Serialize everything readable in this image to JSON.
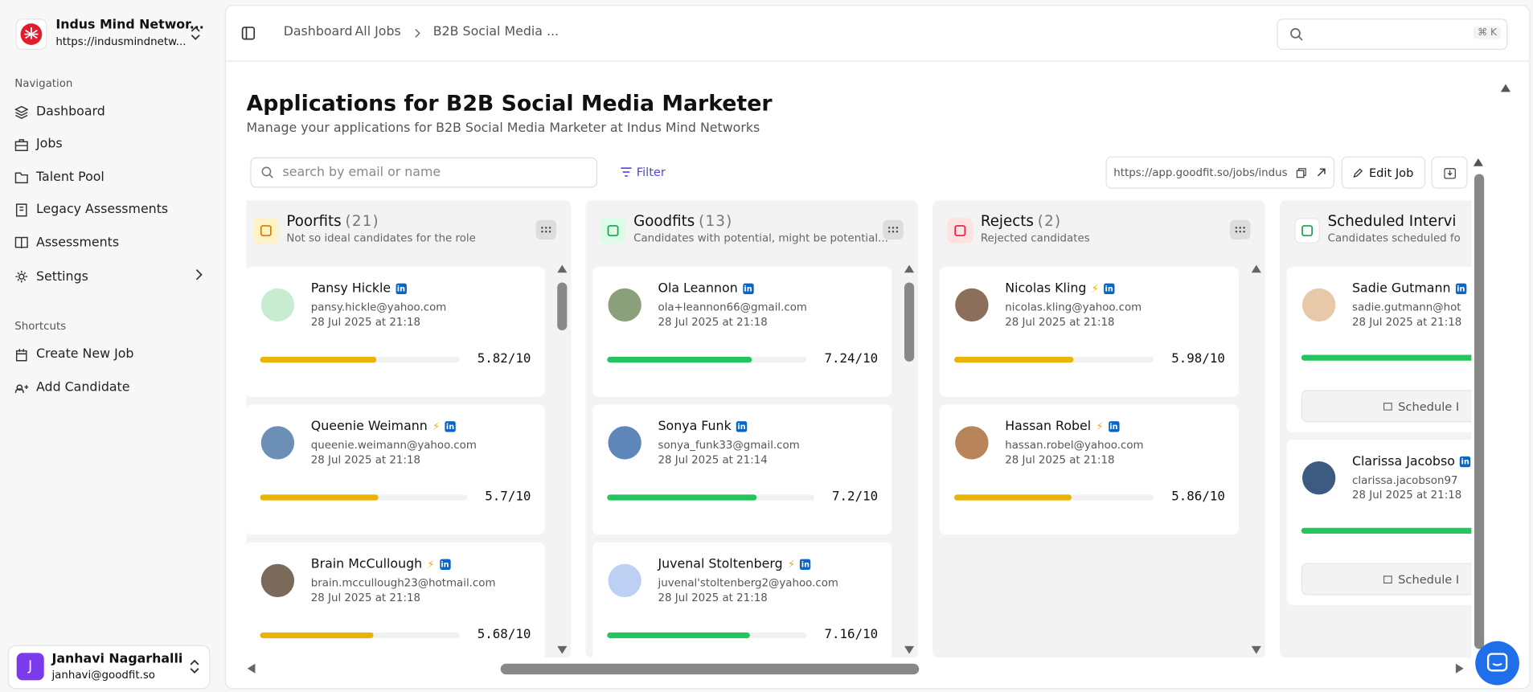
{
  "sidebar": {
    "org_name": "Indus Mind Networ...",
    "org_url": "https://indusmindnetw...",
    "nav_heading": "Navigation",
    "nav": [
      "Dashboard",
      "Jobs",
      "Talent Pool",
      "Legacy Assessments",
      "Assessments",
      "Settings"
    ],
    "shortcuts_heading": "Shortcuts",
    "shortcuts": [
      "Create New Job",
      "Add Candidate"
    ],
    "user": {
      "initial": "J",
      "name": "Janhavi Nagarhalli",
      "email": "janhavi@goodfit.so"
    }
  },
  "header": {
    "breadcrumb": [
      "Dashboard",
      "All Jobs",
      "B2B Social Media ..."
    ],
    "search_shortcut": "⌘ K"
  },
  "page": {
    "title": "Applications for B2B Social Media Marketer",
    "subtitle": "Manage your applications for B2B Social Media Marketer at Indus Mind Networks",
    "search_placeholder": "search by email or name",
    "filter": "Filter",
    "job_url": "https://app.goodfit.so/jobs/indus...",
    "edit_job": "Edit Job"
  },
  "columns": [
    {
      "title": "Poorfits",
      "count": "(21)",
      "subtitle": "Not so ideal candidates for the role",
      "color": "#eab308",
      "cards": [
        {
          "name": "Pansy Hickle",
          "email": "pansy.hickle@yahoo.com",
          "date": "28 Jul 2025 at 21:18",
          "lightning": false,
          "score": {
            "value": 5.82,
            "max": 10,
            "label": "5.82/10"
          }
        },
        {
          "name": "Queenie Weimann",
          "email": "queenie.weimann@yahoo.com",
          "date": "28 Jul 2025 at 21:18",
          "lightning": true,
          "score": {
            "value": 5.7,
            "max": 10,
            "label": "5.7/10"
          }
        },
        {
          "name": "Brain McCullough",
          "email": "brain.mccullough23@hotmail.com",
          "date": "28 Jul 2025 at 21:18",
          "lightning": true,
          "score": {
            "value": 5.68,
            "max": 10,
            "label": "5.68/10"
          }
        }
      ]
    },
    {
      "title": "Goodfits",
      "count": "(13)",
      "subtitle": "Candidates with potential, might be potential...",
      "color": "#22c55e",
      "cards": [
        {
          "name": "Ola Leannon",
          "email": "ola+leannon66@gmail.com",
          "date": "28 Jul 2025 at 21:18",
          "lightning": false,
          "score": {
            "value": 7.24,
            "max": 10,
            "label": "7.24/10"
          }
        },
        {
          "name": "Sonya Funk",
          "email": "sonya_funk33@gmail.com",
          "date": "28 Jul 2025 at 21:14",
          "lightning": false,
          "score": {
            "value": 7.2,
            "max": 10,
            "label": "7.2/10"
          }
        },
        {
          "name": "Juvenal Stoltenberg",
          "email": "juvenal'stoltenberg2@yahoo.com",
          "date": "28 Jul 2025 at 21:18",
          "lightning": true,
          "score": {
            "value": 7.16,
            "max": 10,
            "label": "7.16/10"
          }
        }
      ]
    },
    {
      "title": "Rejects",
      "count": "(2)",
      "subtitle": "Rejected candidates",
      "color": "#eab308",
      "cards": [
        {
          "name": "Nicolas Kling",
          "email": "nicolas.kling@yahoo.com",
          "date": "28 Jul 2025 at 21:18",
          "lightning": true,
          "score": {
            "value": 5.98,
            "max": 10,
            "label": "5.98/10"
          }
        },
        {
          "name": "Hassan Robel",
          "email": "hassan.robel@yahoo.com",
          "date": "28 Jul 2025 at 21:18",
          "lightning": true,
          "score": {
            "value": 5.86,
            "max": 10,
            "label": "5.86/10"
          }
        }
      ]
    },
    {
      "title": "Scheduled Intervi",
      "subtitle": "Candidates scheduled fo",
      "color": "#22c55e",
      "cards": [
        {
          "name": "Sadie Gutmann",
          "email": "sadie.gutmann@hot",
          "date": "28 Jul 2025 at 21:18",
          "action": "Schedule I"
        },
        {
          "name": "Clarissa Jacobso",
          "email": "clarissa.jacobson97",
          "date": "28 Jul 2025 at 21:18",
          "action": "Schedule I"
        }
      ]
    }
  ]
}
